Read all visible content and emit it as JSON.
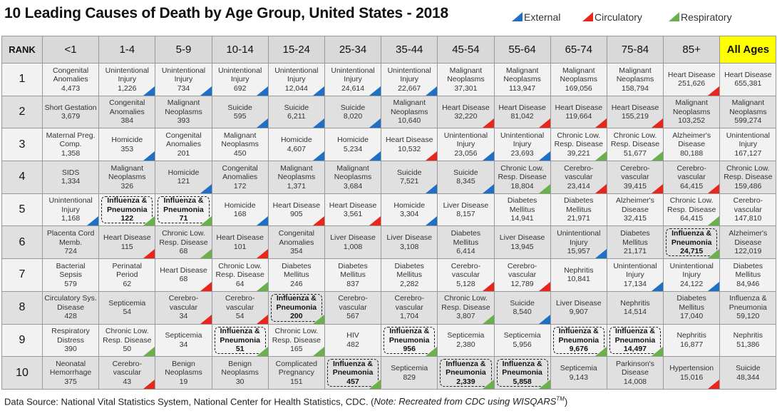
{
  "title": "10 Leading Causes of Death by Age Group, United States - 2018",
  "legend": [
    {
      "label": "External",
      "color": "#1f6fc5"
    },
    {
      "label": "Circulatory",
      "color": "#e8261c"
    },
    {
      "label": "Respiratory",
      "color": "#6ab04c"
    }
  ],
  "footer": {
    "source": "Data Source: National Vital Statistics System, National Center for Health Statistics, CDC. (",
    "note": "Note: Recreated from CDC using WISQARS",
    "tm": "TM",
    "close": ")"
  },
  "chart_data": {
    "type": "table",
    "title": "10 Leading Causes of Death by Age Group, United States - 2018",
    "rank_header": "RANK",
    "columns": [
      "<1",
      "1-4",
      "5-9",
      "10-14",
      "15-24",
      "25-34",
      "35-44",
      "45-54",
      "55-64",
      "65-74",
      "75-84",
      "85+",
      "All Ages"
    ],
    "highlight_cause": "Influenza & Pneumonia",
    "rows": [
      {
        "rank": "1",
        "cells": [
          {
            "label": "Congenital Anomalies",
            "value": "4,473"
          },
          {
            "label": "Unintentional Injury",
            "value": "1,226",
            "cat": "External"
          },
          {
            "label": "Unintentional Injury",
            "value": "734",
            "cat": "External"
          },
          {
            "label": "Unintentional Injury",
            "value": "692",
            "cat": "External"
          },
          {
            "label": "Unintentional Injury",
            "value": "12,044",
            "cat": "External"
          },
          {
            "label": "Unintentional Injury",
            "value": "24,614",
            "cat": "External"
          },
          {
            "label": "Unintentional Injury",
            "value": "22,667",
            "cat": "External"
          },
          {
            "label": "Malignant Neoplasms",
            "value": "37,301"
          },
          {
            "label": "Malignant Neoplasms",
            "value": "113,947"
          },
          {
            "label": "Malignant Neoplasms",
            "value": "169,056"
          },
          {
            "label": "Malignant Neoplasms",
            "value": "158,794"
          },
          {
            "label": "Heart Disease",
            "value": "251,626",
            "cat": "Circulatory"
          },
          {
            "label": "Heart Disease",
            "value": "655,381"
          }
        ]
      },
      {
        "rank": "2",
        "cells": [
          {
            "label": "Short Gestation",
            "value": "3,679"
          },
          {
            "label": "Congenital Anomalies",
            "value": "384"
          },
          {
            "label": "Malignant Neoplasms",
            "value": "393"
          },
          {
            "label": "Suicide",
            "value": "595",
            "cat": "External"
          },
          {
            "label": "Suicide",
            "value": "6,211",
            "cat": "External"
          },
          {
            "label": "Suicide",
            "value": "8,020",
            "cat": "External"
          },
          {
            "label": "Malignant Neoplasms",
            "value": "10,640"
          },
          {
            "label": "Heart Disease",
            "value": "32,220",
            "cat": "Circulatory"
          },
          {
            "label": "Heart Disease",
            "value": "81,042",
            "cat": "Circulatory"
          },
          {
            "label": "Heart Disease",
            "value": "119,664",
            "cat": "Circulatory"
          },
          {
            "label": "Heart Disease",
            "value": "155,219",
            "cat": "Circulatory"
          },
          {
            "label": "Malignant Neoplasms",
            "value": "103,252"
          },
          {
            "label": "Malignant Neoplasms",
            "value": "599,274"
          }
        ]
      },
      {
        "rank": "3",
        "cells": [
          {
            "label": "Maternal Preg. Comp.",
            "value": "1,358"
          },
          {
            "label": "Homicide",
            "value": "353",
            "cat": "External"
          },
          {
            "label": "Congenital Anomalies",
            "value": "201"
          },
          {
            "label": "Malignant Neoplasms",
            "value": "450"
          },
          {
            "label": "Homicide",
            "value": "4,607",
            "cat": "External"
          },
          {
            "label": "Homicide",
            "value": "5,234",
            "cat": "External"
          },
          {
            "label": "Heart Disease",
            "value": "10,532",
            "cat": "Circulatory"
          },
          {
            "label": "Unintentional Injury",
            "value": "23,056",
            "cat": "External"
          },
          {
            "label": "Unintentional Injury",
            "value": "23,693",
            "cat": "External"
          },
          {
            "label": "Chronic Low. Resp. Disease",
            "value": "39,221",
            "cat": "Respiratory"
          },
          {
            "label": "Chronic Low. Resp. Disease",
            "value": "51,677",
            "cat": "Respiratory"
          },
          {
            "label": "Alzheimer's Disease",
            "value": "80,188"
          },
          {
            "label": "Unintentional Injury",
            "value": "167,127"
          }
        ]
      },
      {
        "rank": "4",
        "cells": [
          {
            "label": "SIDS",
            "value": "1,334"
          },
          {
            "label": "Malignant Neoplasms",
            "value": "326"
          },
          {
            "label": "Homicide",
            "value": "121",
            "cat": "External"
          },
          {
            "label": "Congenital Anomalies",
            "value": "172"
          },
          {
            "label": "Malignant Neoplasms",
            "value": "1,371"
          },
          {
            "label": "Malignant Neoplasms",
            "value": "3,684"
          },
          {
            "label": "Suicide",
            "value": "7,521",
            "cat": "External"
          },
          {
            "label": "Suicide",
            "value": "8,345",
            "cat": "External"
          },
          {
            "label": "Chronic Low. Resp. Disease",
            "value": "18,804",
            "cat": "Respiratory"
          },
          {
            "label": "Cerebro-vascular",
            "value": "23,414",
            "cat": "Circulatory"
          },
          {
            "label": "Cerebro-vascular",
            "value": "39,415",
            "cat": "Circulatory"
          },
          {
            "label": "Cerebro-vascular",
            "value": "64,415",
            "cat": "Circulatory"
          },
          {
            "label": "Chronic Low. Resp. Disease",
            "value": "159,486"
          }
        ]
      },
      {
        "rank": "5",
        "cells": [
          {
            "label": "Unintentional Injury",
            "value": "1,168",
            "cat": "External"
          },
          {
            "label": "Influenza & Pneumonia",
            "value": "122",
            "cat": "Respiratory",
            "highlight": true
          },
          {
            "label": "Influenza & Pneumonia",
            "value": "71",
            "cat": "Respiratory",
            "highlight": true
          },
          {
            "label": "Homicide",
            "value": "168",
            "cat": "External"
          },
          {
            "label": "Heart Disease",
            "value": "905",
            "cat": "Circulatory"
          },
          {
            "label": "Heart Disease",
            "value": "3,561",
            "cat": "Circulatory"
          },
          {
            "label": "Homicide",
            "value": "3,304",
            "cat": "External"
          },
          {
            "label": "Liver Disease",
            "value": "8,157"
          },
          {
            "label": "Diabetes Mellitus",
            "value": "14,941"
          },
          {
            "label": "Diabetes Mellitus",
            "value": "21,971"
          },
          {
            "label": "Alzheimer's Disease",
            "value": "32,415"
          },
          {
            "label": "Chronic Low. Resp. Disease",
            "value": "64,415",
            "cat": "Respiratory"
          },
          {
            "label": "Cerebro-vascular",
            "value": "147,810"
          }
        ]
      },
      {
        "rank": "6",
        "cells": [
          {
            "label": "Placenta Cord Memb.",
            "value": "724"
          },
          {
            "label": "Heart Disease",
            "value": "115",
            "cat": "Circulatory"
          },
          {
            "label": "Chronic Low. Resp. Disease",
            "value": "68",
            "cat": "Respiratory"
          },
          {
            "label": "Heart Disease",
            "value": "101",
            "cat": "Circulatory"
          },
          {
            "label": "Congenital Anomalies",
            "value": "354"
          },
          {
            "label": "Liver Disease",
            "value": "1,008"
          },
          {
            "label": "Liver Disease",
            "value": "3,108"
          },
          {
            "label": "Diabetes Mellitus",
            "value": "6,414"
          },
          {
            "label": "Liver Disease",
            "value": "13,945"
          },
          {
            "label": "Unintentional Injury",
            "value": "15,957",
            "cat": "External"
          },
          {
            "label": "Diabetes Mellitus",
            "value": "21,171"
          },
          {
            "label": "Influenza & Pneumonia",
            "value": "24,715",
            "cat": "Respiratory",
            "highlight": true
          },
          {
            "label": "Alzheimer's Disease",
            "value": "122,019"
          }
        ]
      },
      {
        "rank": "7",
        "cells": [
          {
            "label": "Bacterial Sepsis",
            "value": "579"
          },
          {
            "label": "Perinatal Period",
            "value": "62"
          },
          {
            "label": "Heart Disease",
            "value": "68",
            "cat": "Circulatory"
          },
          {
            "label": "Chronic Low. Resp. Disease",
            "value": "64",
            "cat": "Respiratory"
          },
          {
            "label": "Diabetes Mellitus",
            "value": "246"
          },
          {
            "label": "Diabetes Mellitus",
            "value": "837"
          },
          {
            "label": "Diabetes Mellitus",
            "value": "2,282"
          },
          {
            "label": "Cerebro-vascular",
            "value": "5,128",
            "cat": "Circulatory"
          },
          {
            "label": "Cerebro-vascular",
            "value": "12,789",
            "cat": "Circulatory"
          },
          {
            "label": "Nephritis",
            "value": "10,841"
          },
          {
            "label": "Unintentional Injury",
            "value": "17,134",
            "cat": "External"
          },
          {
            "label": "Unintentional Injury",
            "value": "24,122",
            "cat": "External"
          },
          {
            "label": "Diabetes Mellitus",
            "value": "84,946"
          }
        ]
      },
      {
        "rank": "8",
        "cells": [
          {
            "label": "Circulatory Sys. Disease",
            "value": "428"
          },
          {
            "label": "Septicemia",
            "value": "54"
          },
          {
            "label": "Cerebro-vascular",
            "value": "34",
            "cat": "Circulatory"
          },
          {
            "label": "Cerebro-vascular",
            "value": "54",
            "cat": "Circulatory"
          },
          {
            "label": "Influenza & Pneumonia",
            "value": "200",
            "cat": "Respiratory",
            "highlight": true
          },
          {
            "label": "Cerebro-vascular",
            "value": "567"
          },
          {
            "label": "Cerebro-vascular",
            "value": "1,704"
          },
          {
            "label": "Chronic Low. Resp. Disease",
            "value": "3,807",
            "cat": "Respiratory"
          },
          {
            "label": "Suicide",
            "value": "8,540",
            "cat": "External"
          },
          {
            "label": "Liver Disease",
            "value": "9,907"
          },
          {
            "label": "Nephritis",
            "value": "14,514"
          },
          {
            "label": "Diabetes Mellitus",
            "value": "17,040"
          },
          {
            "label": "Influenza & Pneumonia",
            "value": "59,120"
          }
        ]
      },
      {
        "rank": "9",
        "cells": [
          {
            "label": "Respiratory Distress",
            "value": "390"
          },
          {
            "label": "Chronic Low. Resp. Disease",
            "value": "50",
            "cat": "Respiratory"
          },
          {
            "label": "Septicemia",
            "value": "34"
          },
          {
            "label": "Influenza & Pneumonia",
            "value": "51",
            "cat": "Respiratory",
            "highlight": true
          },
          {
            "label": "Chronic Low. Resp. Disease",
            "value": "165",
            "cat": "Respiratory"
          },
          {
            "label": "HIV",
            "value": "482"
          },
          {
            "label": "Influenza & Pneumonia",
            "value": "956",
            "cat": "Respiratory",
            "highlight": true
          },
          {
            "label": "Septicemia",
            "value": "2,380"
          },
          {
            "label": "Septicemia",
            "value": "5,956"
          },
          {
            "label": "Influenza & Pneumonia",
            "value": "9,676",
            "cat": "Respiratory",
            "highlight": true
          },
          {
            "label": "Influenza & Pneumonia",
            "value": "14,497",
            "cat": "Respiratory",
            "highlight": true
          },
          {
            "label": "Nephritis",
            "value": "16,877"
          },
          {
            "label": "Nephritis",
            "value": "51,386"
          }
        ]
      },
      {
        "rank": "10",
        "cells": [
          {
            "label": "Neonatal Hemorrhage",
            "value": "375"
          },
          {
            "label": "Cerebro-vascular",
            "value": "43",
            "cat": "Circulatory"
          },
          {
            "label": "Benign Neoplasms",
            "value": "19"
          },
          {
            "label": "Benign Neoplasms",
            "value": "30"
          },
          {
            "label": "Complicated Pregnancy",
            "value": "151"
          },
          {
            "label": "Influenza & Pneumonia",
            "value": "457",
            "cat": "Respiratory",
            "highlight": true
          },
          {
            "label": "Septicemia",
            "value": "829"
          },
          {
            "label": "Influenza & Pneumonia",
            "value": "2,339",
            "cat": "Respiratory",
            "highlight": true
          },
          {
            "label": "Influenza & Pneumonia",
            "value": "5,858",
            "cat": "Respiratory",
            "highlight": true
          },
          {
            "label": "Septicemia",
            "value": "9,143"
          },
          {
            "label": "Parkinson's Disease",
            "value": "14,008"
          },
          {
            "label": "Hypertension",
            "value": "15,016",
            "cat": "Circulatory"
          },
          {
            "label": "Suicide",
            "value": "48,344"
          }
        ]
      }
    ]
  }
}
